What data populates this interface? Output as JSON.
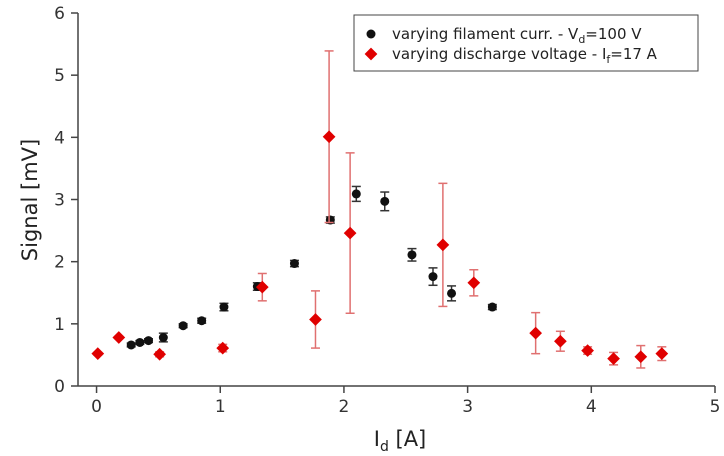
{
  "chart_data": {
    "type": "scatter",
    "xlabel": {
      "main": "I",
      "sub": "d",
      "tail": " [A]"
    },
    "ylabel": "Signal [mV]",
    "xlim": [
      -0.15,
      5
    ],
    "ylim": [
      0,
      6
    ],
    "xticks": [
      0,
      1,
      2,
      3,
      4,
      5
    ],
    "yticks": [
      0,
      1,
      2,
      3,
      4,
      5,
      6
    ],
    "grid": false,
    "legend_position": "top-right",
    "series": [
      {
        "name_parts": [
          "varying filament curr. - V",
          "d",
          "=100 V"
        ],
        "color": "#111111",
        "error_color": "#333333",
        "marker": "circle",
        "points": [
          {
            "x": 0.28,
            "y": 0.66,
            "err": 0.03
          },
          {
            "x": 0.35,
            "y": 0.7,
            "err": 0.03
          },
          {
            "x": 0.42,
            "y": 0.73,
            "err": 0.03
          },
          {
            "x": 0.54,
            "y": 0.78,
            "err": 0.07
          },
          {
            "x": 0.7,
            "y": 0.97,
            "err": 0.03
          },
          {
            "x": 0.85,
            "y": 1.05,
            "err": 0.04
          },
          {
            "x": 1.03,
            "y": 1.27,
            "err": 0.06
          },
          {
            "x": 1.3,
            "y": 1.6,
            "err": 0.06
          },
          {
            "x": 1.6,
            "y": 1.97,
            "err": 0.05
          },
          {
            "x": 1.89,
            "y": 2.67,
            "err": 0.05
          },
          {
            "x": 2.1,
            "y": 3.09,
            "err": 0.12
          },
          {
            "x": 2.33,
            "y": 2.97,
            "err": 0.15
          },
          {
            "x": 2.55,
            "y": 2.11,
            "err": 0.1
          },
          {
            "x": 2.72,
            "y": 1.76,
            "err": 0.14
          },
          {
            "x": 2.87,
            "y": 1.49,
            "err": 0.12
          },
          {
            "x": 3.2,
            "y": 1.27,
            "err": 0.04
          }
        ]
      },
      {
        "name_parts": [
          "varying discharge voltage - I",
          "f",
          "=17 A"
        ],
        "color": "#e00000",
        "error_color": "#e07070",
        "marker": "diamond",
        "points": [
          {
            "x": 0.01,
            "y": 0.52,
            "err": 0.02
          },
          {
            "x": 0.18,
            "y": 0.78,
            "err": 0.02
          },
          {
            "x": 0.51,
            "y": 0.51,
            "err": 0.04
          },
          {
            "x": 1.02,
            "y": 0.61,
            "err": 0.06
          },
          {
            "x": 1.34,
            "y": 1.59,
            "err": 0.22
          },
          {
            "x": 1.77,
            "y": 1.07,
            "err": 0.46
          },
          {
            "x": 1.88,
            "y": 4.01,
            "err": 1.38
          },
          {
            "x": 2.05,
            "y": 2.46,
            "err": 1.29
          },
          {
            "x": 2.8,
            "y": 2.27,
            "err": 0.99
          },
          {
            "x": 3.05,
            "y": 1.66,
            "err": 0.21
          },
          {
            "x": 3.55,
            "y": 0.85,
            "err": 0.33
          },
          {
            "x": 3.75,
            "y": 0.72,
            "err": 0.16
          },
          {
            "x": 3.97,
            "y": 0.57,
            "err": 0.06
          },
          {
            "x": 4.18,
            "y": 0.44,
            "err": 0.1
          },
          {
            "x": 4.4,
            "y": 0.47,
            "err": 0.18
          },
          {
            "x": 4.57,
            "y": 0.52,
            "err": 0.11
          }
        ]
      }
    ]
  }
}
